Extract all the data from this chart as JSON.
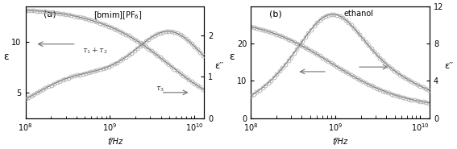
{
  "panel_a": {
    "label": "(a)",
    "title": "[bmim][PF$_6$]",
    "xlabel": "f/Hz",
    "ylabel_left": "ε",
    "ylabel_right": "ε′′",
    "xlim": [
      100000000.0,
      13000000000.0
    ],
    "ylim_left": [
      2.5,
      13.5
    ],
    "ylim_right": [
      0,
      2.7
    ],
    "yticks_left": [
      5,
      10
    ],
    "yticks_right": [
      0,
      1,
      2
    ]
  },
  "panel_b": {
    "label": "(b)",
    "title": "ethanol",
    "xlabel": "f/Hz",
    "ylabel_left": "ε",
    "ylabel_right": "ε′′",
    "xlim": [
      100000000.0,
      13000000000.0
    ],
    "ylim_left": [
      0,
      30
    ],
    "ylim_right": [
      0,
      12
    ],
    "yticks_left": [
      0,
      10,
      20
    ],
    "yticks_right": [
      0,
      4,
      8,
      12
    ]
  },
  "line_color": "#707070",
  "marker_facecolor": "none",
  "marker_edgecolor": "#aaaaaa",
  "bg_color": "#ffffff"
}
